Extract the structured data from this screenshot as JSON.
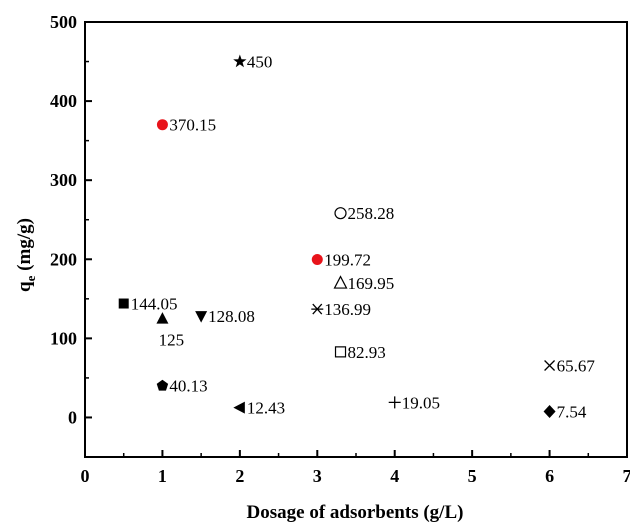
{
  "chart_data": {
    "type": "scatter",
    "xlabel": "Dosage of adsorbents (g/L)",
    "ylabel_main": "q",
    "ylabel_sub": "e",
    "ylabel_unit": " (mg/g)",
    "xlim": [
      0,
      7
    ],
    "ylim": [
      -50,
      500
    ],
    "xticks": [
      0,
      1,
      2,
      3,
      4,
      5,
      6,
      7
    ],
    "yticks": [
      0,
      100,
      200,
      300,
      400,
      500
    ],
    "grid": false,
    "points": [
      {
        "x": 0.5,
        "y": 144.05,
        "label": "144.05",
        "marker": "square-filled",
        "color": "#000000",
        "label_pos": "right"
      },
      {
        "x": 1.0,
        "y": 125,
        "label": "125",
        "marker": "triangle-up-filled",
        "color": "#000000",
        "label_pos": "below"
      },
      {
        "x": 1.0,
        "y": 370.15,
        "label": "370.15",
        "marker": "circle-filled",
        "color": "#e8131a",
        "label_pos": "right"
      },
      {
        "x": 1.0,
        "y": 40.13,
        "label": "40.13",
        "marker": "pentagon-filled",
        "color": "#000000",
        "label_pos": "right"
      },
      {
        "x": 1.5,
        "y": 128.08,
        "label": "128.08",
        "marker": "triangle-down-filled",
        "color": "#000000",
        "label_pos": "right"
      },
      {
        "x": 2.0,
        "y": 450,
        "label": "450",
        "marker": "star-filled",
        "color": "#000000",
        "label_pos": "right"
      },
      {
        "x": 2.0,
        "y": 12.43,
        "label": "12.43",
        "marker": "triangle-left-filled",
        "color": "#000000",
        "label_pos": "right"
      },
      {
        "x": 3.0,
        "y": 199.72,
        "label": "199.72",
        "marker": "circle-filled",
        "color": "#e8131a",
        "label_pos": "right"
      },
      {
        "x": 3.0,
        "y": 136.99,
        "label": "136.99",
        "marker": "asterisk",
        "color": "#000000",
        "label_pos": "right"
      },
      {
        "x": 3.3,
        "y": 258.28,
        "label": "258.28",
        "marker": "circle-open",
        "color": "#000000",
        "label_pos": "right"
      },
      {
        "x": 3.3,
        "y": 169.95,
        "label": "169.95",
        "marker": "triangle-up-open",
        "color": "#000000",
        "label_pos": "right"
      },
      {
        "x": 3.3,
        "y": 82.93,
        "label": "82.93",
        "marker": "square-open",
        "color": "#000000",
        "label_pos": "right"
      },
      {
        "x": 4.0,
        "y": 19.05,
        "label": "19.05",
        "marker": "plus",
        "color": "#000000",
        "label_pos": "right"
      },
      {
        "x": 6.0,
        "y": 65.67,
        "label": "65.67",
        "marker": "x",
        "color": "#000000",
        "label_pos": "right"
      },
      {
        "x": 6.0,
        "y": 7.54,
        "label": "7.54",
        "marker": "diamond-filled",
        "color": "#000000",
        "label_pos": "right"
      }
    ]
  }
}
